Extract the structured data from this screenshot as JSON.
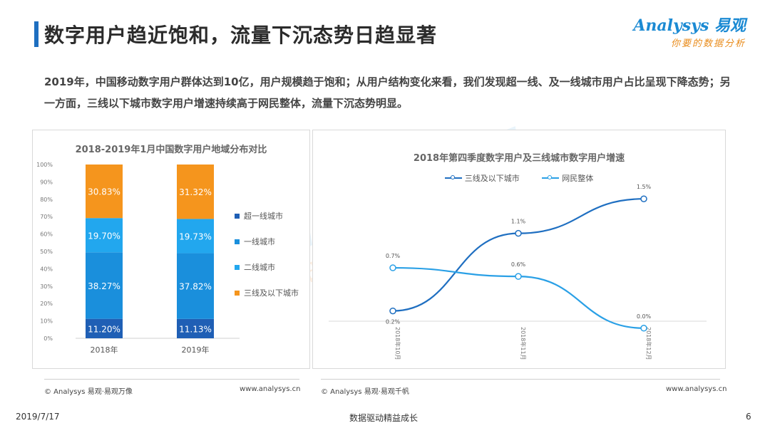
{
  "header": {
    "title": "数字用户趋近饱和，流量下沉态势日趋显著",
    "logo_main": "Analysys 易观",
    "logo_sub": "你要的数据分析"
  },
  "intro": "2019年，中国移动数字用户群体达到10亿，用户规模趋于饱和；从用户结构变化来看，我们发现超一线、及一线城市用户占比呈现下降态势；另一方面，三线以下城市数字用户增速持续高于网民整体，流量下沉态势明显。",
  "watermark": {
    "main": "Analysys 易观",
    "sub": "你要的数据分析"
  },
  "colors": {
    "c1": "#1f5fb5",
    "c2": "#1a8fdc",
    "c3": "#22a7ee",
    "c4": "#f5951d",
    "lineA": "#1f6fc1",
    "lineB": "#2aa0e6"
  },
  "chart_data": [
    {
      "type": "bar",
      "stacked": true,
      "title": "2018-2019年1月中国数字用户地域分布对比",
      "categories": [
        "2018年",
        "2019年"
      ],
      "ylim": [
        0,
        100
      ],
      "yticks": [
        "0%",
        "10%",
        "20%",
        "30%",
        "40%",
        "50%",
        "60%",
        "70%",
        "80%",
        "90%",
        "100%"
      ],
      "legend_position": "right",
      "series": [
        {
          "name": "超一线城市",
          "values": [
            11.2,
            11.13
          ],
          "labels": [
            "11.20%",
            "11.13%"
          ]
        },
        {
          "name": "一线城市",
          "values": [
            38.27,
            37.82
          ],
          "labels": [
            "38.27%",
            "37.82%"
          ]
        },
        {
          "name": "二线城市",
          "values": [
            19.7,
            19.73
          ],
          "labels": [
            "19.70%",
            "19.73%"
          ]
        },
        {
          "name": "三线及以下城市",
          "values": [
            30.83,
            31.32
          ],
          "labels": [
            "30.83%",
            "31.32%"
          ]
        }
      ]
    },
    {
      "type": "line",
      "title": "2018年第四季度数字用户及三线城市数字用户增速",
      "categories": [
        "2018年10月",
        "2018年11月",
        "2018年12月"
      ],
      "ylim": [
        -0.2,
        1.7
      ],
      "legend_position": "top",
      "series": [
        {
          "name": "三线及以下城市",
          "values": [
            0.2,
            1.1,
            1.5
          ],
          "labels": [
            "0.2%",
            "1.1%",
            "1.5%"
          ]
        },
        {
          "name": "网民整体",
          "values": [
            0.7,
            0.6,
            0.0
          ],
          "labels": [
            "0.7%",
            "0.6%",
            "0.0%"
          ]
        }
      ]
    }
  ],
  "footer": {
    "left_copyright": "© Analysys 易观·易观万像",
    "left_url": "www.analysys.cn",
    "right_copyright": "© Analysys 易观·易观千帆",
    "right_url": "www.analysys.cn",
    "date": "2019/7/17",
    "slogan": "数据驱动精益成长",
    "page_number": "6"
  }
}
